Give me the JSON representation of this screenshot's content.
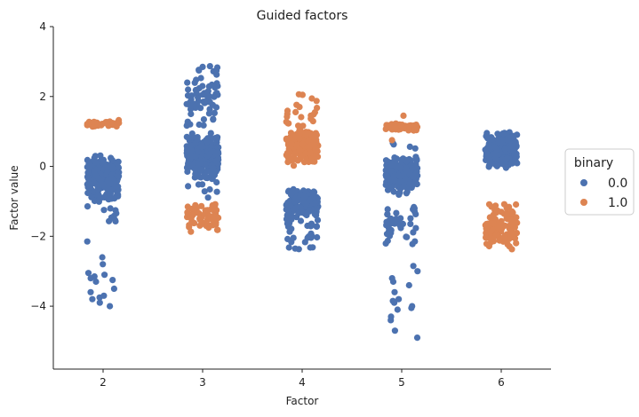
{
  "chart_data": {
    "type": "scatter",
    "title": "Guided factors",
    "xlabel": "Factor",
    "ylabel": "Factor value",
    "categories": [
      "2",
      "3",
      "4",
      "5",
      "6"
    ],
    "y_ticks": [
      "−4",
      "−2",
      "0",
      "2",
      "4"
    ],
    "y_tick_values": [
      -4,
      -2,
      0,
      2,
      4
    ],
    "ylim": [
      -5.8,
      4
    ],
    "legend": {
      "title": "binary",
      "placement": "right",
      "entries": [
        "0.0",
        "1.0"
      ]
    },
    "series": [
      {
        "name": "0.0",
        "color": "#4c72b0",
        "groups": {
          "2": [
            {
              "range": [
                -1.1,
                0.4
              ],
              "n": 220
            },
            {
              "range": [
                -1.7,
                -1.1
              ],
              "n": 10
            },
            {
              "values": [
                -2.15,
                -2.6,
                -2.8,
                -3.05,
                -3.1,
                -3.15,
                -3.2,
                -3.25,
                -3.3,
                -3.5,
                -3.6,
                -3.7,
                -3.75,
                -3.8,
                -3.9,
                -4.0
              ]
            }
          ],
          "3": [
            {
              "range": [
                -0.4,
                1.0
              ],
              "n": 260
            },
            {
              "range": [
                1.0,
                3.05
              ],
              "n": 70
            },
            {
              "range": [
                -0.9,
                -0.4
              ],
              "n": 8
            }
          ],
          "4": [
            {
              "range": [
                -1.5,
                -0.6
              ],
              "n": 140
            },
            {
              "range": [
                -2.4,
                -1.5
              ],
              "n": 30
            }
          ],
          "5": [
            {
              "range": [
                -0.9,
                0.3
              ],
              "n": 220
            },
            {
              "range": [
                0.3,
                0.8
              ],
              "n": 4
            },
            {
              "range": [
                -2.6,
                -0.9
              ],
              "n": 40
            },
            {
              "values": [
                -2.85,
                -3.0,
                -3.2,
                -3.3,
                -3.4,
                -3.6,
                -3.8,
                -3.85,
                -3.9,
                -4.0,
                -4.05,
                -4.1,
                -4.3,
                -4.4,
                -4.7,
                -4.9
              ]
            }
          ],
          "6": [
            {
              "range": [
                -0.1,
                1.05
              ],
              "n": 230
            }
          ]
        }
      },
      {
        "name": "1.0",
        "color": "#dd8452",
        "groups": {
          "2": [
            {
              "range": [
                1.1,
                1.35
              ],
              "n": 40
            }
          ],
          "3": [
            {
              "range": [
                -1.9,
                -1.0
              ],
              "n": 60
            }
          ],
          "4": [
            {
              "range": [
                0.0,
                1.2
              ],
              "n": 170
            },
            {
              "range": [
                1.2,
                2.1
              ],
              "n": 20
            }
          ],
          "5": [
            {
              "range": [
                1.0,
                1.25
              ],
              "n": 45
            },
            {
              "values": [
                1.45,
                0.75
              ]
            }
          ],
          "6": [
            {
              "range": [
                -2.5,
                -1.0
              ],
              "n": 120
            }
          ]
        }
      }
    ]
  }
}
